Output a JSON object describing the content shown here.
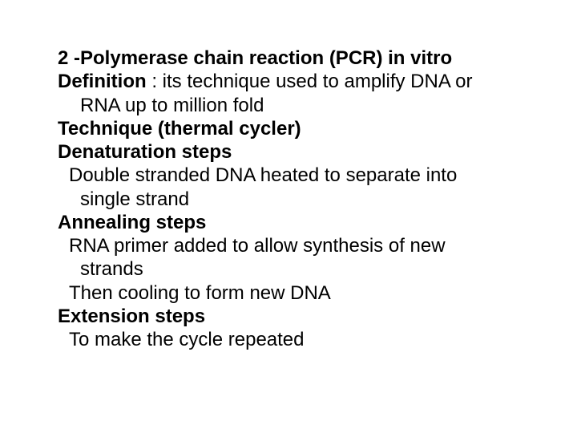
{
  "slide": {
    "text_color": "#000000",
    "background_color": "#ffffff",
    "font_family": "Arial",
    "base_font_size_pt": 18,
    "lines": [
      {
        "bold": true,
        "indent": 0,
        "text": "2 -Polymerase chain reaction (PCR) in vitro"
      },
      {
        "bold": true,
        "indent": 0,
        "text": "Definition",
        "tail": " : its technique used to amplify DNA or"
      },
      {
        "bold": false,
        "indent": 1,
        "text": "RNA up to million fold"
      },
      {
        "bold": true,
        "indent": 0,
        "text": "Technique (thermal cycler)"
      },
      {
        "bold": true,
        "indent": 0,
        "text": "Denaturation steps"
      },
      {
        "bold": false,
        "indent": 2,
        "text": "Double stranded DNA heated to separate into"
      },
      {
        "bold": false,
        "indent": 1,
        "text": "single strand"
      },
      {
        "bold": true,
        "indent": 0,
        "text": "Annealing steps"
      },
      {
        "bold": false,
        "indent": 2,
        "text": "RNA primer added to allow synthesis of new"
      },
      {
        "bold": false,
        "indent": 1,
        "text": "strands"
      },
      {
        "bold": false,
        "indent": 2,
        "text": "Then cooling to form new DNA"
      },
      {
        "bold": true,
        "indent": 0,
        "text": "Extension steps"
      },
      {
        "bold": false,
        "indent": 2,
        "text": "To make the cycle repeated"
      }
    ]
  }
}
